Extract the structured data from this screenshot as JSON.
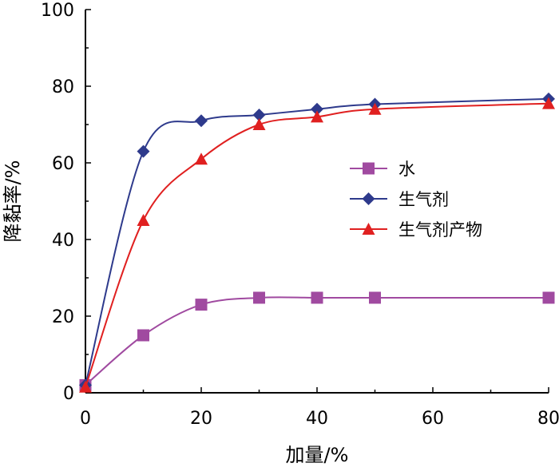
{
  "chart_data": {
    "type": "line",
    "xlabel": "加量/%",
    "ylabel": "降黏率/%",
    "xlim": [
      0,
      80
    ],
    "ylim": [
      0,
      100
    ],
    "xticks": [
      0,
      20,
      40,
      60,
      80
    ],
    "yticks": [
      0,
      20,
      40,
      60,
      80,
      100
    ],
    "grid": false,
    "legend_position": "right",
    "series": [
      {
        "name": "水",
        "color": "#a04aa0",
        "marker": "square",
        "x": [
          0,
          10,
          20,
          30,
          40,
          50,
          80
        ],
        "y": [
          2,
          15,
          23,
          24.8,
          24.8,
          24.8,
          24.8
        ]
      },
      {
        "name": "生气剂",
        "color": "#2e3a8c",
        "marker": "diamond",
        "x": [
          0,
          10,
          20,
          30,
          40,
          50,
          80
        ],
        "y": [
          2,
          63,
          71,
          72.5,
          74,
          75.3,
          76.7
        ]
      },
      {
        "name": "生气剂产物",
        "color": "#e02020",
        "marker": "triangle",
        "x": [
          0,
          10,
          20,
          30,
          40,
          50,
          80
        ],
        "y": [
          1.5,
          45,
          61,
          70,
          72,
          74,
          75.5
        ]
      }
    ]
  }
}
